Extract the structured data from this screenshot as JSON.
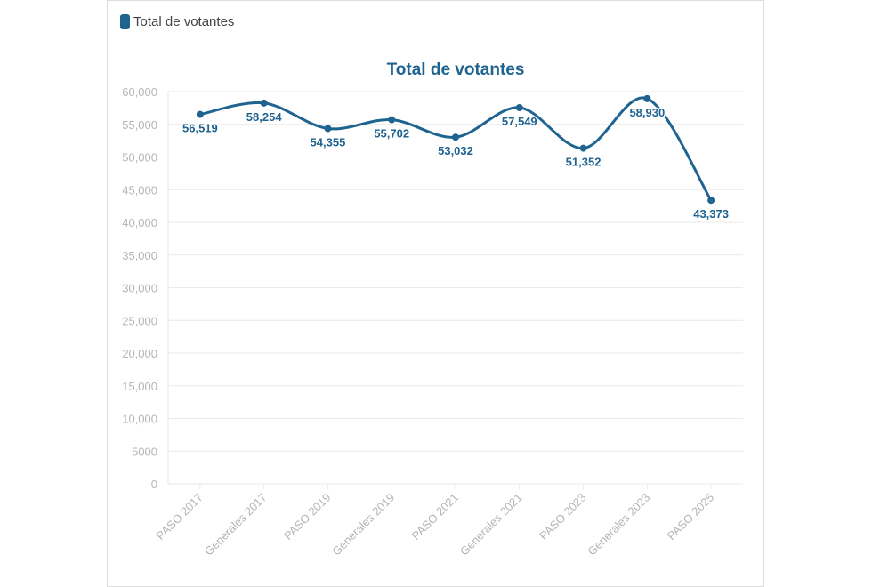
{
  "colors": {
    "series": "#1f6391",
    "grid": "#e9e9e9",
    "tick_text": "#b5b5b5"
  },
  "legend": {
    "label": "Total de votantes",
    "icon": "rounded-square-swatch"
  },
  "chart_data": {
    "type": "line",
    "title": "Total de votantes",
    "xlabel": "",
    "ylabel": "",
    "smooth": true,
    "grid": true,
    "legend_position": "top-left",
    "categories": [
      "PASO 2017",
      "Generales 2017",
      "PASO 2019",
      "Generales 2019",
      "PASO 2021",
      "Generales 2021",
      "PASO 2023",
      "Generales 2023",
      "PASO 2025"
    ],
    "series": [
      {
        "name": "Total de votantes",
        "values": [
          56519,
          58254,
          54355,
          55702,
          53032,
          57549,
          51352,
          58930,
          43373
        ]
      }
    ],
    "data_labels": [
      "56,519",
      "58,254",
      "54,355",
      "55,702",
      "53,032",
      "57,549",
      "51,352",
      "58,930",
      "43,373"
    ],
    "ylim": [
      0,
      60000
    ],
    "yticks": [
      0,
      5000,
      10000,
      15000,
      20000,
      25000,
      30000,
      35000,
      40000,
      45000,
      50000,
      55000,
      60000
    ],
    "ytick_labels": [
      "0",
      "5000",
      "10,000",
      "15,000",
      "20,000",
      "25,000",
      "30,000",
      "35,000",
      "40,000",
      "45,000",
      "50,000",
      "55,000",
      "60,000"
    ]
  }
}
